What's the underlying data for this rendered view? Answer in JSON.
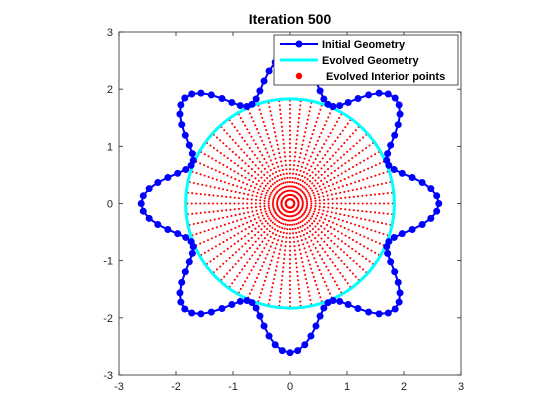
{
  "chart_data": {
    "type": "line",
    "title": "Iteration 500",
    "xlabel": "",
    "ylabel": "",
    "xlim": [
      -3,
      3
    ],
    "ylim": [
      -3,
      3
    ],
    "xticks": [
      -3,
      -2,
      -1,
      0,
      1,
      2,
      3
    ],
    "yticks": [
      -3,
      -2,
      -1,
      0,
      1,
      2,
      3
    ],
    "xtick_labels": [
      "-3",
      "-2",
      "-1",
      "0",
      "1",
      "2",
      "3"
    ],
    "ytick_labels": [
      "-3",
      "-2",
      "-1",
      "0",
      "1",
      "2",
      "3"
    ],
    "grid": false,
    "legend_position": "top-right",
    "series": [
      {
        "name": "Initial Geometry",
        "kind": "line-marker",
        "color": "#0000FF",
        "shape": "8-lobed curve r(t) = base + amplitude*cos(8t)",
        "base_radius": 2.23,
        "amplitude": 0.38,
        "lobes": 8,
        "point_count": 120
      },
      {
        "name": "Evolved Geometry",
        "kind": "line",
        "color": "#00FFFF",
        "shape": "circle",
        "center": [
          0,
          0
        ],
        "radius": 1.83
      },
      {
        "name": "Evolved Interior points",
        "kind": "scatter",
        "color": "#FF0000",
        "shape": "filled disc, radial-ray layout",
        "radius": 1.8,
        "rings": 24,
        "points_per_ring": 60
      }
    ]
  }
}
